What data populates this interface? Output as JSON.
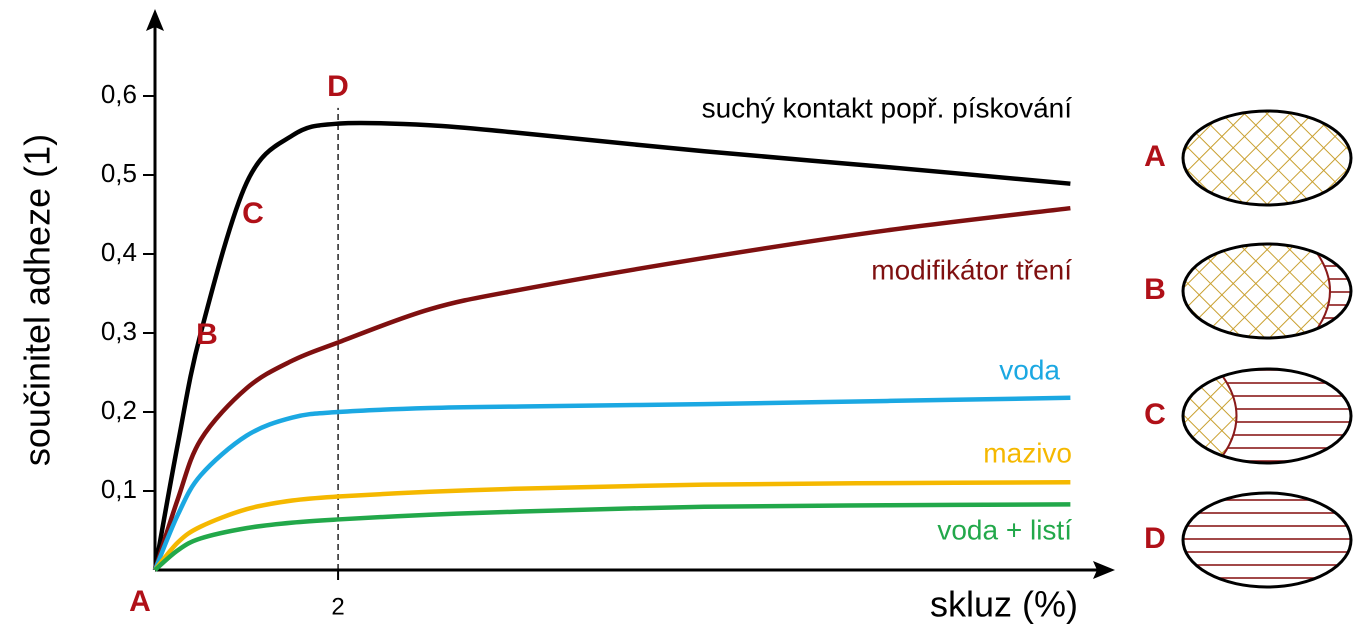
{
  "chart_data": {
    "type": "line",
    "x_label": "skluz (%)",
    "y_label": "součinitel adheze (1)",
    "x": [
      0,
      0.25,
      0.5,
      1,
      1.5,
      2,
      3,
      4,
      6,
      8,
      10
    ],
    "series": [
      {
        "name": "suchý kontakt popř. pískování",
        "color": "#000000",
        "values": [
          0,
          0.16,
          0.3,
          0.49,
          0.55,
          0.565,
          0.563,
          0.553,
          0.53,
          0.51,
          0.489
        ]
      },
      {
        "name": "modifikátor tření",
        "color": "#7f1010",
        "values": [
          0,
          0.09,
          0.165,
          0.23,
          0.265,
          0.288,
          0.33,
          0.355,
          0.395,
          0.43,
          0.458
        ]
      },
      {
        "name": "voda",
        "color": "#1ba8e2",
        "values": [
          0,
          0.07,
          0.12,
          0.17,
          0.193,
          0.2,
          0.205,
          0.207,
          0.21,
          0.214,
          0.218
        ]
      },
      {
        "name": "mazivo",
        "color": "#f5b800",
        "values": [
          0,
          0.035,
          0.055,
          0.077,
          0.088,
          0.093,
          0.099,
          0.103,
          0.108,
          0.11,
          0.111
        ]
      },
      {
        "name": "voda + listí",
        "color": "#22a84a",
        "values": [
          0,
          0.025,
          0.04,
          0.053,
          0.06,
          0.064,
          0.07,
          0.074,
          0.08,
          0.082,
          0.083
        ]
      }
    ],
    "xlim": [
      0,
      10.4
    ],
    "ylim": [
      0,
      0.7
    ],
    "xticks": [
      2
    ],
    "yticks": [
      {
        "value": 0.1,
        "label": "0,1"
      },
      {
        "value": 0.2,
        "label": "0,2"
      },
      {
        "value": 0.3,
        "label": "0,3"
      },
      {
        "value": 0.4,
        "label": "0,4"
      },
      {
        "value": 0.5,
        "label": "0,5"
      },
      {
        "value": 0.6,
        "label": "0,6"
      }
    ],
    "annotations": [
      "A",
      "B",
      "C",
      "D"
    ],
    "diagrams": [
      "A",
      "B",
      "C",
      "D"
    ]
  }
}
